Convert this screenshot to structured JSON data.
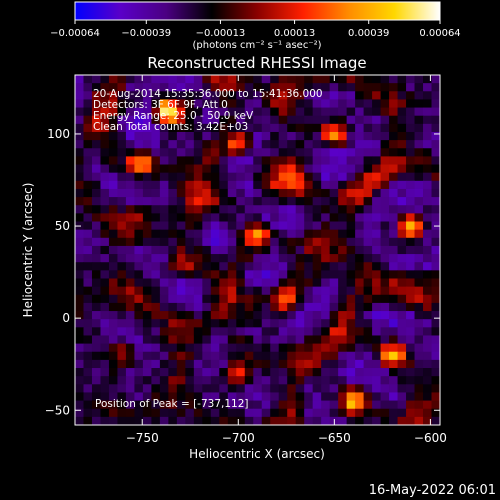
{
  "chart_data": {
    "type": "heatmap",
    "title": "Reconstructed RHESSI Image",
    "xlabel": "Heliocentric X (arcsec)",
    "ylabel": "Heliocentric Y (arcsec)",
    "xlim": [
      -785,
      -595
    ],
    "ylim": [
      -58,
      132
    ],
    "x_ticks": [
      -750,
      -700,
      -650,
      -600
    ],
    "y_ticks": [
      -50,
      0,
      50,
      100
    ],
    "x_tick_labels": [
      "−750",
      "−700",
      "−650",
      "−600"
    ],
    "y_tick_labels": [
      "−50",
      "0",
      "50",
      "100"
    ],
    "colorbar": {
      "range": [
        -0.00064,
        0.00064
      ],
      "ticks": [
        -0.00064,
        -0.00039,
        -0.00013,
        0.00013,
        0.00039,
        0.00064
      ],
      "tick_labels": [
        "−0.00064",
        "−0.00039",
        "−0.00013",
        "0.00013",
        "0.00039",
        "0.00064"
      ],
      "unit_label": "(photons cm⁻² s⁻¹ asec⁻²)",
      "colormap": [
        "#0000ff",
        "#5a00c8",
        "#4b0082",
        "#000000",
        "#8b0000",
        "#ff2000",
        "#ff8c00",
        "#ffd700",
        "#ffffff"
      ]
    },
    "grid": false,
    "grid_size": [
      43,
      43
    ],
    "hot_spots": [
      {
        "x": -737,
        "y": 112,
        "amp": 0.00064
      },
      {
        "x": -650,
        "y": 100,
        "amp": 0.0005
      },
      {
        "x": -700,
        "y": 95,
        "amp": 0.00045
      },
      {
        "x": -750,
        "y": 85,
        "amp": 0.0004
      },
      {
        "x": -610,
        "y": 50,
        "amp": 0.00055
      },
      {
        "x": -690,
        "y": 45,
        "amp": 0.00045
      },
      {
        "x": -730,
        "y": 30,
        "amp": 0.0003
      },
      {
        "x": -675,
        "y": 10,
        "amp": 0.0004
      },
      {
        "x": -620,
        "y": -20,
        "amp": 0.0004
      },
      {
        "x": -640,
        "y": -45,
        "amp": 0.00045
      },
      {
        "x": -700,
        "y": -30,
        "amp": 0.0003
      },
      {
        "x": -760,
        "y": -20,
        "amp": 0.00025
      }
    ],
    "annotations": {
      "line1": "20-Aug-2014 15:35:36.000 to 15:41:36.000",
      "line2": "Detectors: 3F 6F 9F, Att 0",
      "line3": "Energy Range: 25.0 - 50.0 keV",
      "line4": "Clean    Total counts: 3.42E+03",
      "peak": "Position of Peak = [-737,112]"
    }
  },
  "footer": {
    "date": "16-May-2022 06:01"
  }
}
